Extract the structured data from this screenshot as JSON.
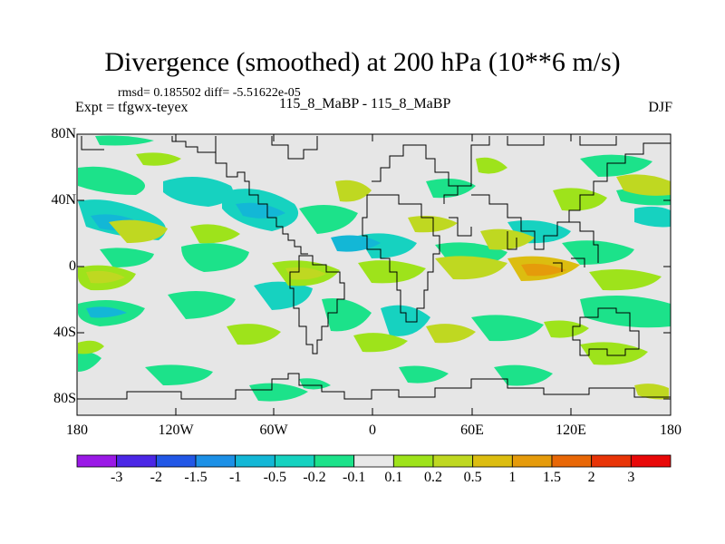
{
  "title": "Divergence (smoothed) at 200 hPa (10**6 m/s)",
  "stats": "rmsd= 0.185502 diff= -5.51622e-05",
  "experiment": "Expt = tfgwx-teyex",
  "difference": "115_8_MaBP - 115_8_MaBP",
  "season": "DJF",
  "lat_labels": [
    "80N",
    "40N",
    "0",
    "40S",
    "80S"
  ],
  "lon_labels": [
    "180",
    "120W",
    "60W",
    "0",
    "60E",
    "120E",
    "180"
  ],
  "colorbar": {
    "colors": [
      "#9a19e6",
      "#4b27e6",
      "#2257e6",
      "#1c90e6",
      "#13b7d6",
      "#16d2c0",
      "#1ce28a",
      "#e8e8e8",
      "#9ee31b",
      "#bfd821",
      "#dcbd10",
      "#e59b0b",
      "#e86706",
      "#e83407",
      "#e80808"
    ],
    "labels": [
      "-3",
      "-2",
      "-1.5",
      "-1",
      "-0.5",
      "-0.2",
      "-0.1",
      "0.1",
      "0.2",
      "0.5",
      "1",
      "1.5",
      "2",
      "3"
    ]
  },
  "map_colors": {
    "background": "#e6e6e6",
    "coast": "#000000"
  }
}
